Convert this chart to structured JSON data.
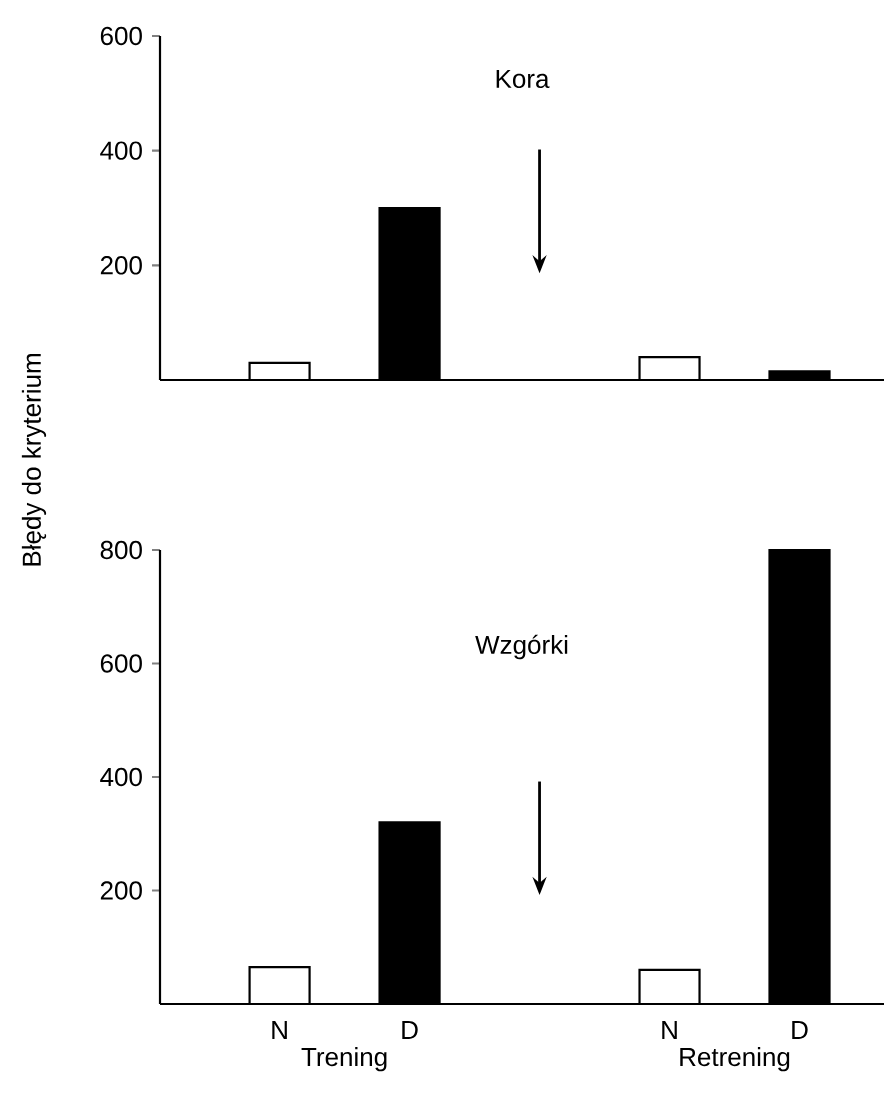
{
  "chart_data": [
    {
      "type": "bar",
      "title": "Kora",
      "categories": [
        null,
        null,
        null,
        null,
        null
      ],
      "values": [
        30,
        300,
        null,
        40,
        15
      ],
      "colors": [
        "#ffffff",
        "#000000",
        null,
        "#ffffff",
        "#000000"
      ],
      "ylim": [
        0,
        600
      ],
      "yticks": [
        200,
        400,
        600
      ]
    },
    {
      "type": "bar",
      "title": "Wzgórki",
      "ylabel": "Błędy do kryterium",
      "categories": [
        "N",
        "D",
        null,
        "N",
        "D"
      ],
      "values": [
        65,
        320,
        null,
        60,
        800
      ],
      "colors": [
        "#ffffff",
        "#000000",
        null,
        "#ffffff",
        "#000000"
      ],
      "ylim": [
        0,
        800
      ],
      "yticks": [
        200,
        400,
        600,
        800
      ],
      "annotations": [
        "Trening",
        "Retrening"
      ]
    }
  ]
}
